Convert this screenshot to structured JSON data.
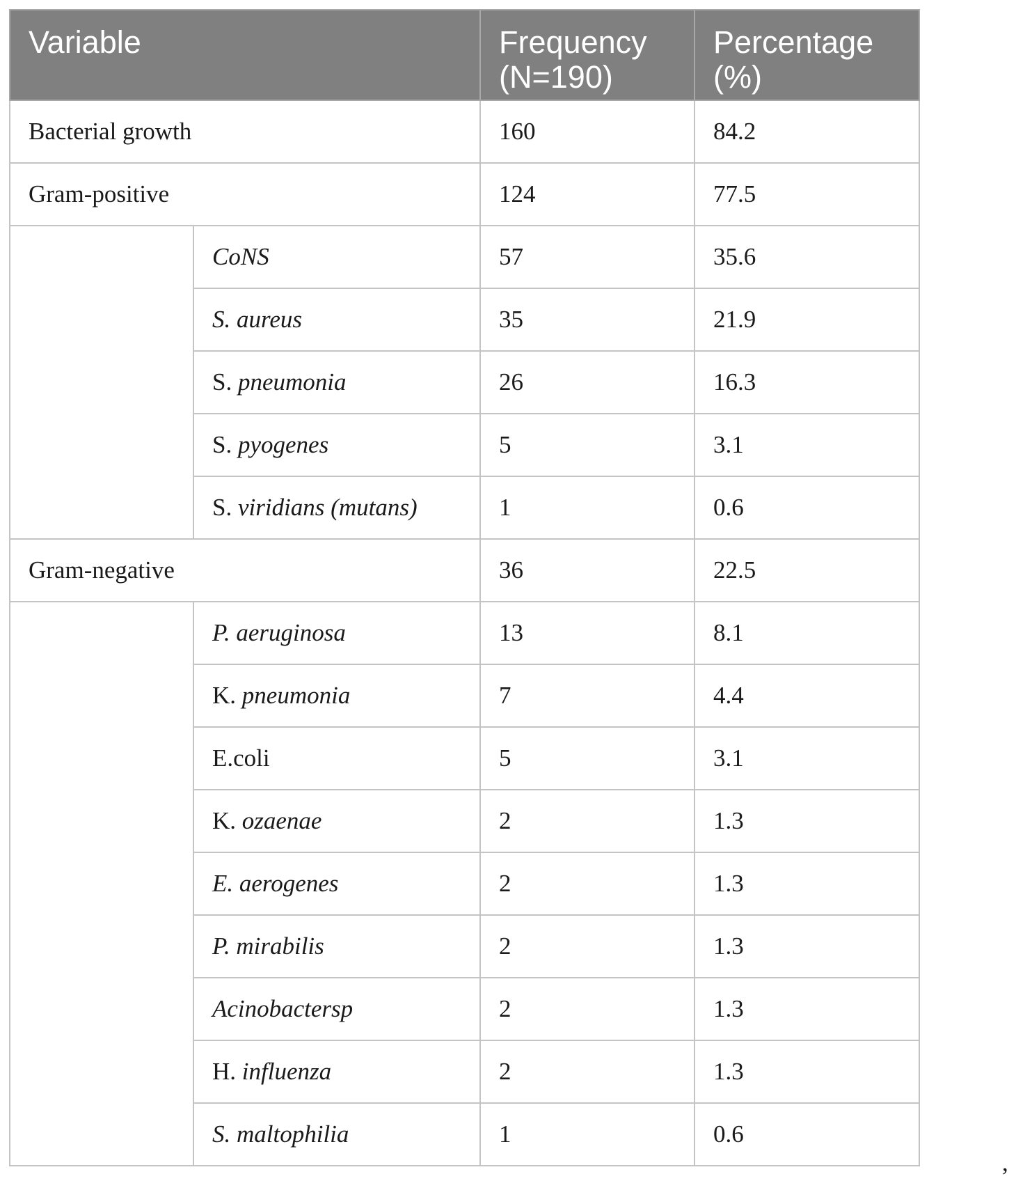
{
  "table": {
    "headers": {
      "variable": "Variable",
      "frequency": "Frequency (N=190)",
      "percentage": "Percentage (%)"
    },
    "groups": [
      {
        "label": "Bacterial growth",
        "frequency": "160",
        "percentage": "84.2",
        "items": []
      },
      {
        "label": "Gram-positive",
        "frequency": "124",
        "percentage": "77.5",
        "items": [
          {
            "prefix": "",
            "name": "CoNS",
            "frequency": "57",
            "percentage": "35.6"
          },
          {
            "prefix": "",
            "name": "S. aureus",
            "frequency": "35",
            "percentage": "21.9"
          },
          {
            "prefix": "S. ",
            "name": "pneumonia",
            "frequency": "26",
            "percentage": "16.3"
          },
          {
            "prefix": "S. ",
            "name": "pyogenes",
            "frequency": "5",
            "percentage": "3.1"
          },
          {
            "prefix": "S. ",
            "name": "viridians (mutans)",
            "frequency": "1",
            "percentage": "0.6"
          }
        ]
      },
      {
        "label": "Gram-negative",
        "frequency": "36",
        "percentage": "22.5",
        "items": [
          {
            "prefix": "",
            "name": "P. aeruginosa",
            "frequency": "13",
            "percentage": "8.1"
          },
          {
            "prefix": "K. ",
            "name": "pneumonia",
            "frequency": "7",
            "percentage": "4.4"
          },
          {
            "prefix": "E.coli",
            "name": "",
            "frequency": "5",
            "percentage": "3.1"
          },
          {
            "prefix": "K. ",
            "name": "ozaenae",
            "frequency": "2",
            "percentage": "1.3"
          },
          {
            "prefix": "",
            "name": "E. aerogenes",
            "frequency": "2",
            "percentage": "1.3"
          },
          {
            "prefix": "",
            "name": "P. mirabilis",
            "frequency": "2",
            "percentage": "1.3"
          },
          {
            "prefix": "",
            "name": "Acinobactersp",
            "frequency": "2",
            "percentage": "1.3"
          },
          {
            "prefix": "H. ",
            "name": "influenza",
            "frequency": "2",
            "percentage": "1.3"
          },
          {
            "prefix": "",
            "name": "S. maltophilia",
            "frequency": "1",
            "percentage": "0.6"
          }
        ]
      }
    ]
  },
  "trailing_mark": ","
}
